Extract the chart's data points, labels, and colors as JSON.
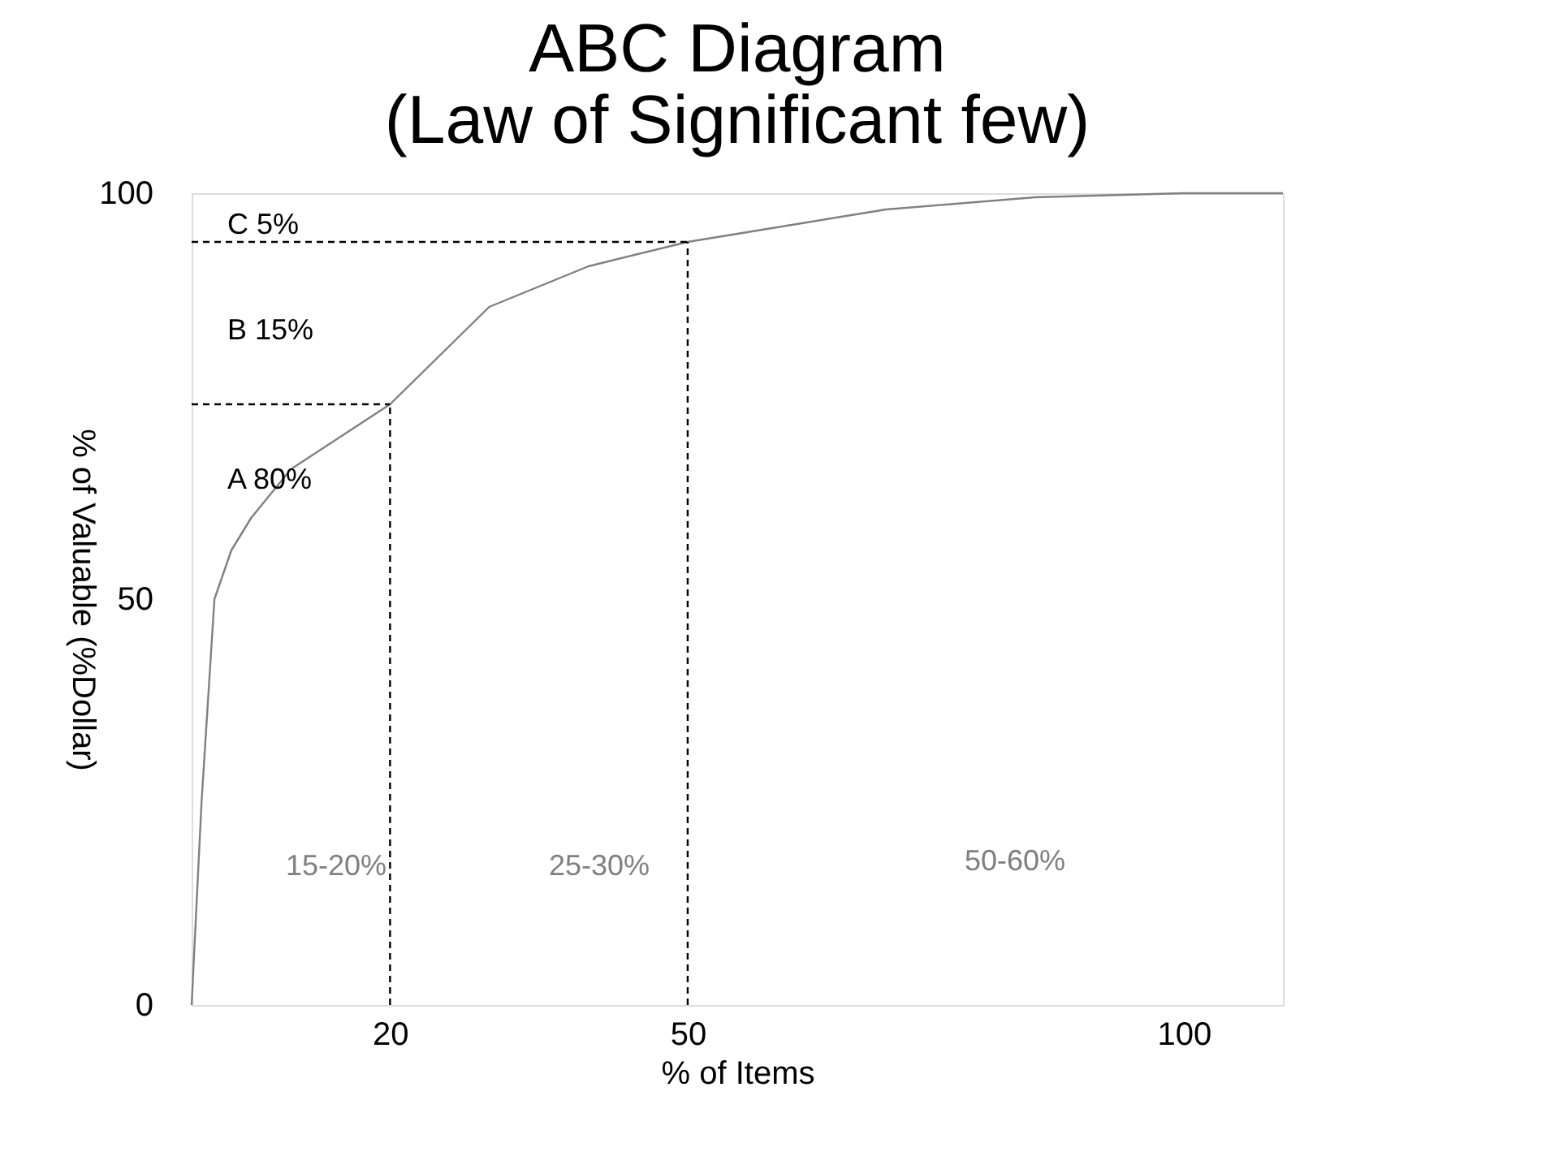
{
  "chart_data": {
    "type": "line",
    "title": "ABC Diagram\n(Law of Significant few)",
    "xlabel": "% of Items",
    "ylabel": "% of Valuable (%Dollar)",
    "xlim": [
      0,
      110
    ],
    "xticks": [
      20,
      50,
      100
    ],
    "ylim": [
      0,
      100
    ],
    "yticks": [
      0,
      50,
      100
    ],
    "grid": false,
    "marker": "none",
    "series": [
      {
        "color": "#808080",
        "line_style": "solid",
        "x": [
          0,
          1,
          2.3,
          4,
          6,
          8,
          10,
          15,
          20,
          30,
          40,
          50,
          60,
          70,
          85,
          100,
          110
        ],
        "values": [
          0,
          25,
          50,
          56,
          60,
          63,
          66,
          70,
          74,
          86,
          91,
          94,
          96,
          98,
          99.5,
          100,
          100
        ]
      },
      {
        "color": "#000000",
        "line_style": "dashed",
        "x": [
          0,
          20
        ],
        "values": [
          74,
          74
        ]
      },
      {
        "color": "#000000",
        "line_style": "dashed",
        "x": [
          20,
          20
        ],
        "values": [
          0,
          74
        ]
      },
      {
        "color": "#000000",
        "line_style": "dashed",
        "x": [
          0,
          50
        ],
        "values": [
          94,
          94
        ]
      },
      {
        "color": "#000000",
        "line_style": "dashed",
        "x": [
          50,
          50
        ],
        "values": [
          0,
          94
        ]
      }
    ],
    "annotations": [
      "C 5%",
      "B 15%",
      "A 80%",
      "15-20%",
      "25-30%",
      "50-60%"
    ]
  }
}
